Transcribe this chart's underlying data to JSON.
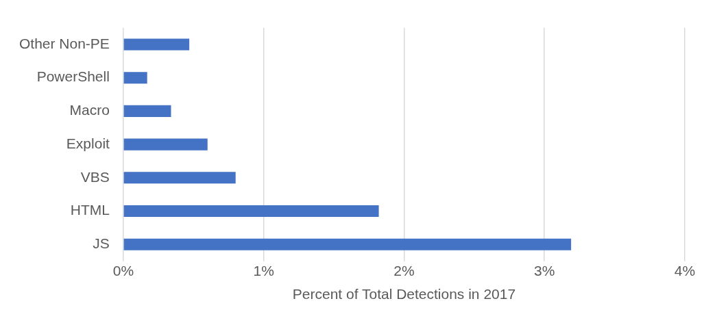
{
  "chart_data": {
    "type": "bar",
    "orientation": "horizontal",
    "xlabel": "Percent of Total Detections in 2017",
    "categories": [
      "Other Non-PE",
      "PowerShell",
      "Macro",
      "Exploit",
      "VBS",
      "HTML",
      "JS"
    ],
    "values": [
      0.47,
      0.17,
      0.34,
      0.6,
      0.8,
      1.82,
      3.19
    ],
    "color": "#4472c4",
    "xlim": [
      0,
      4
    ],
    "xticks": [
      {
        "value": 0,
        "label": "0%"
      },
      {
        "value": 1,
        "label": "1%"
      },
      {
        "value": 2,
        "label": "2%"
      },
      {
        "value": 3,
        "label": "3%"
      },
      {
        "value": 4,
        "label": "4%"
      }
    ],
    "grid": "x",
    "legend": false
  }
}
